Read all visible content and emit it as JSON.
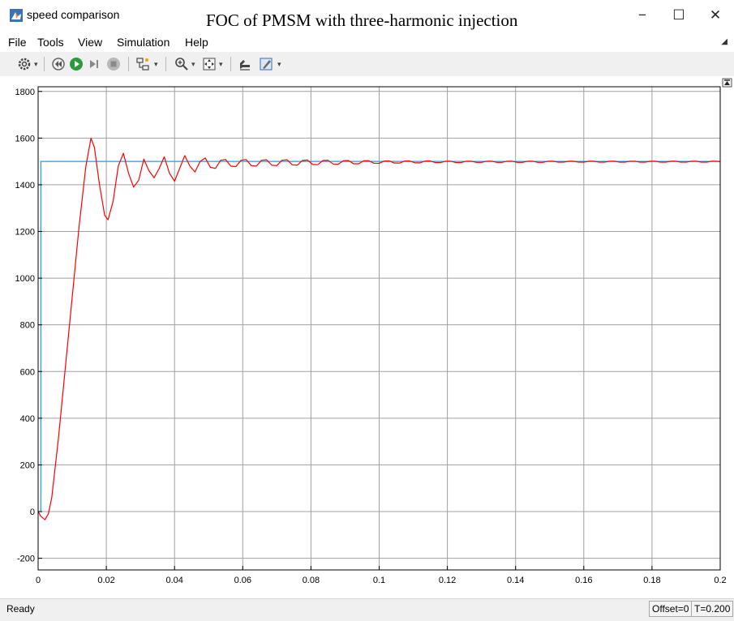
{
  "window": {
    "title": "speed comparison",
    "overlay_title": "FOC of PMSM with three-harmonic injection",
    "controls": [
      "−",
      "☐",
      "✕"
    ]
  },
  "menu": [
    "File",
    "Tools",
    "View",
    "Simulation",
    "Help"
  ],
  "status": {
    "left": "Ready",
    "offset": "Offset=0",
    "time": "T=0.200"
  },
  "colors": {
    "reference": "#1e9cf0",
    "actual": "#ff0000",
    "axes_bg": "#ffffff",
    "grid": "#a0a0a0"
  },
  "chart_data": {
    "type": "line",
    "xlim": [
      0,
      0.2
    ],
    "ylim": [
      -250,
      1820
    ],
    "x_ticks": [
      0,
      0.02,
      0.04,
      0.06,
      0.08,
      0.1,
      0.12,
      0.14,
      0.16,
      0.18,
      0.2
    ],
    "x_tick_labels": [
      "0",
      "0.02",
      "0.04",
      "0.06",
      "0.08",
      "0.1",
      "0.12",
      "0.14",
      "0.16",
      "0.18",
      "0.2"
    ],
    "y_ticks": [
      -200,
      0,
      200,
      400,
      600,
      800,
      1000,
      1200,
      1400,
      1600,
      1800
    ],
    "y_tick_labels": [
      "-200",
      "0",
      "200",
      "400",
      "600",
      "800",
      "1000",
      "1200",
      "1400",
      "1600",
      "1800"
    ],
    "grid": true,
    "series": [
      {
        "color": "#1e9cf0",
        "points": [
          [
            0,
            0
          ],
          [
            0.0008,
            0
          ],
          [
            0.0008,
            1500
          ],
          [
            0.2,
            1500
          ]
        ]
      },
      {
        "color": "#ff0000",
        "points": [
          [
            0,
            0
          ],
          [
            0.0008,
            -20
          ],
          [
            0.002,
            -35
          ],
          [
            0.003,
            -10
          ],
          [
            0.004,
            60
          ],
          [
            0.006,
            320
          ],
          [
            0.008,
            620
          ],
          [
            0.01,
            920
          ],
          [
            0.012,
            1220
          ],
          [
            0.014,
            1480
          ],
          [
            0.0155,
            1600
          ],
          [
            0.0165,
            1560
          ],
          [
            0.018,
            1400
          ],
          [
            0.0195,
            1270
          ],
          [
            0.0205,
            1250
          ],
          [
            0.022,
            1330
          ],
          [
            0.0235,
            1480
          ],
          [
            0.025,
            1535
          ],
          [
            0.0265,
            1450
          ],
          [
            0.028,
            1390
          ],
          [
            0.0295,
            1420
          ],
          [
            0.031,
            1510
          ],
          [
            0.0325,
            1460
          ],
          [
            0.034,
            1430
          ],
          [
            0.0355,
            1470
          ],
          [
            0.037,
            1520
          ],
          [
            0.0385,
            1450
          ],
          [
            0.04,
            1415
          ],
          [
            0.0415,
            1470
          ],
          [
            0.043,
            1525
          ],
          [
            0.0445,
            1480
          ],
          [
            0.046,
            1455
          ],
          [
            0.0475,
            1500
          ],
          [
            0.049,
            1515
          ],
          [
            0.0505,
            1475
          ],
          [
            0.052,
            1470
          ],
          [
            0.0535,
            1505
          ],
          [
            0.055,
            1508
          ],
          [
            0.0565,
            1480
          ],
          [
            0.058,
            1478
          ],
          [
            0.0595,
            1505
          ],
          [
            0.061,
            1508
          ],
          [
            0.0625,
            1482
          ],
          [
            0.064,
            1480
          ],
          [
            0.0655,
            1505
          ],
          [
            0.067,
            1507
          ],
          [
            0.0685,
            1484
          ],
          [
            0.07,
            1482
          ],
          [
            0.0715,
            1505
          ],
          [
            0.073,
            1507
          ],
          [
            0.0745,
            1486
          ],
          [
            0.076,
            1484
          ],
          [
            0.0775,
            1504
          ],
          [
            0.079,
            1506
          ],
          [
            0.0805,
            1487
          ],
          [
            0.082,
            1486
          ],
          [
            0.0835,
            1504
          ],
          [
            0.085,
            1505
          ],
          [
            0.0865,
            1489
          ],
          [
            0.088,
            1488
          ],
          [
            0.0895,
            1503
          ],
          [
            0.091,
            1504
          ],
          [
            0.0925,
            1490
          ],
          [
            0.094,
            1490
          ],
          [
            0.0955,
            1503
          ],
          [
            0.097,
            1503
          ],
          [
            0.0985,
            1492
          ],
          [
            0.1,
            1492
          ],
          [
            0.1015,
            1502
          ],
          [
            0.103,
            1502
          ],
          [
            0.1045,
            1493
          ],
          [
            0.106,
            1493
          ],
          [
            0.1075,
            1502
          ],
          [
            0.109,
            1502
          ],
          [
            0.1105,
            1494
          ],
          [
            0.112,
            1494
          ],
          [
            0.1135,
            1502
          ],
          [
            0.115,
            1502
          ],
          [
            0.1165,
            1495
          ],
          [
            0.118,
            1495
          ],
          [
            0.1195,
            1501
          ],
          [
            0.121,
            1501
          ],
          [
            0.1225,
            1495
          ],
          [
            0.124,
            1495
          ],
          [
            0.1255,
            1501
          ],
          [
            0.127,
            1501
          ],
          [
            0.1285,
            1496
          ],
          [
            0.13,
            1496
          ],
          [
            0.1315,
            1501
          ],
          [
            0.133,
            1501
          ],
          [
            0.1345,
            1496
          ],
          [
            0.136,
            1496
          ],
          [
            0.1375,
            1501
          ],
          [
            0.139,
            1501
          ],
          [
            0.1405,
            1496
          ],
          [
            0.142,
            1496
          ],
          [
            0.1435,
            1501
          ],
          [
            0.145,
            1501
          ],
          [
            0.1465,
            1496
          ],
          [
            0.148,
            1496
          ],
          [
            0.1495,
            1501
          ],
          [
            0.151,
            1501
          ],
          [
            0.1525,
            1497
          ],
          [
            0.154,
            1497
          ],
          [
            0.1555,
            1501
          ],
          [
            0.157,
            1501
          ],
          [
            0.1585,
            1497
          ],
          [
            0.16,
            1497
          ],
          [
            0.1615,
            1501
          ],
          [
            0.163,
            1501
          ],
          [
            0.1645,
            1497
          ],
          [
            0.166,
            1497
          ],
          [
            0.1675,
            1501
          ],
          [
            0.169,
            1501
          ],
          [
            0.1705,
            1497
          ],
          [
            0.172,
            1497
          ],
          [
            0.1735,
            1501
          ],
          [
            0.175,
            1501
          ],
          [
            0.1765,
            1497
          ],
          [
            0.178,
            1497
          ],
          [
            0.1795,
            1501
          ],
          [
            0.181,
            1501
          ],
          [
            0.1825,
            1497
          ],
          [
            0.184,
            1497
          ],
          [
            0.1855,
            1501
          ],
          [
            0.187,
            1501
          ],
          [
            0.1885,
            1497
          ],
          [
            0.19,
            1497
          ],
          [
            0.1915,
            1501
          ],
          [
            0.193,
            1501
          ],
          [
            0.1945,
            1497
          ],
          [
            0.196,
            1497
          ],
          [
            0.1975,
            1501
          ],
          [
            0.199,
            1501
          ],
          [
            0.2,
            1499
          ]
        ]
      }
    ]
  }
}
